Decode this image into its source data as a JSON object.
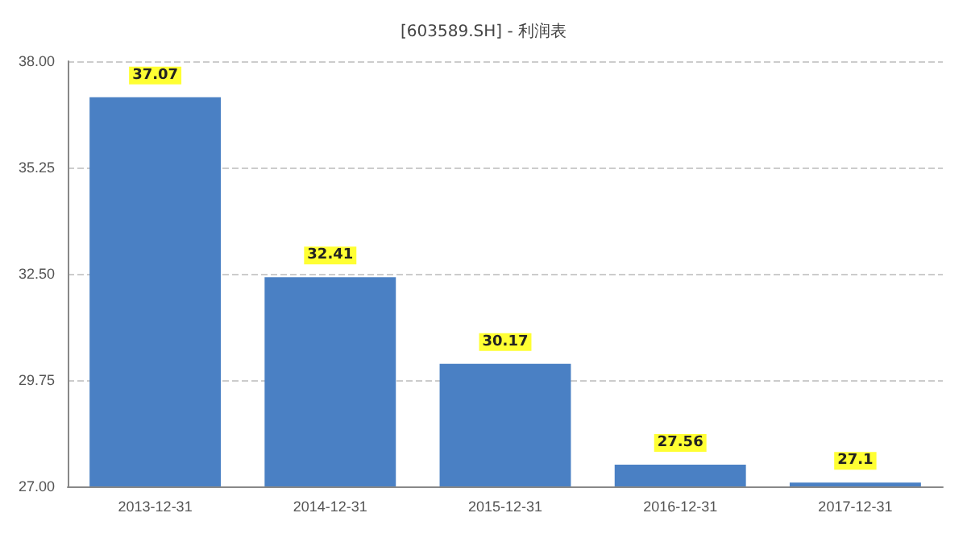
{
  "chart_data": {
    "type": "bar",
    "title": "[603589.SH] - 利润表",
    "categories": [
      "2013-12-31",
      "2014-12-31",
      "2015-12-31",
      "2016-12-31",
      "2017-12-31"
    ],
    "values": [
      37.07,
      32.41,
      30.17,
      27.56,
      27.1
    ],
    "color": "#4a80c4",
    "ylim": [
      27,
      38
    ],
    "yticks": [
      {
        "value": 27,
        "label": "27.00"
      },
      {
        "value": 29.75,
        "label": "29.75"
      },
      {
        "value": 32.5,
        "label": "32.50"
      },
      {
        "value": 35.25,
        "label": "35.25"
      },
      {
        "value": 38,
        "label": "38.00"
      }
    ],
    "grid": "y",
    "data_labels": true
  }
}
